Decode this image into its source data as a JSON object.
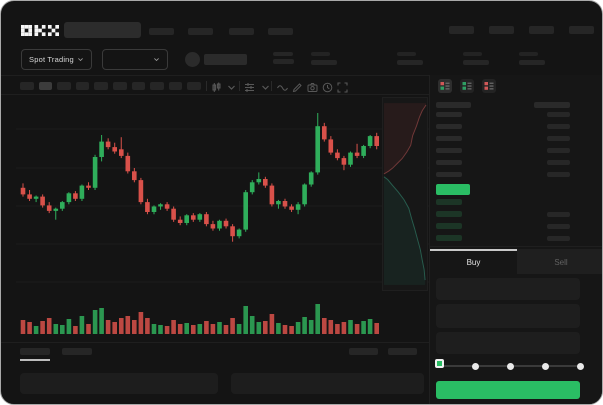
{
  "brand": {
    "name": "OKX"
  },
  "header": {
    "search_placeholder": "",
    "nav_left_placeholders": 4,
    "nav_right_placeholders": 4
  },
  "market_bar": {
    "mode_selector_label": "Spot Trading",
    "pair_selector_value": "",
    "ticker_stat_placeholders": 4
  },
  "toolbar": {
    "timeframe_placeholders": 10,
    "selected_timeframe_index": 1,
    "icons": [
      "candle-style",
      "chevron-down",
      "indicators",
      "chevron-down",
      "wave-line",
      "pencil",
      "camera",
      "clock",
      "fullscreen"
    ]
  },
  "order_book": {
    "view_icons": [
      "book-both",
      "book-bids",
      "book-asks"
    ],
    "selected_view": 0,
    "ask_row_placeholders": 6,
    "bid_row_placeholders": 4,
    "bid_rows_with_amount": [
      1,
      2,
      3
    ]
  },
  "trade_panel": {
    "tabs": [
      {
        "label": "Buy",
        "active": true
      },
      {
        "label": "Sell",
        "active": false
      }
    ],
    "field_placeholders": 3,
    "slider": {
      "stops": 5,
      "active_stop": 0
    },
    "submit_label": ""
  },
  "bottom_bar": {
    "left_tab_placeholders": 2,
    "active_left_tab": 0,
    "right_link_placeholders": 2,
    "panel_placeholders": 2
  },
  "colors": {
    "candle_green": "#2fae5b",
    "candle_red": "#d9514a",
    "accent_green": "#2abd64",
    "bid_skeleton_green": "#1c3526",
    "ask_icon_red": "#d05858",
    "bid_icon_green": "#2f9e63",
    "tab_active_text": "#e4e4e4",
    "tab_inactive_text": "#626262"
  },
  "chart_data": {
    "type": "candlestick",
    "title": "",
    "xlabel": "",
    "ylabel": "",
    "legend": false,
    "grid": true,
    "price_scale_note": "no axis labels visible; prices normalized 0-100",
    "candles_ohlc": [
      [
        56,
        58,
        52,
        53
      ],
      [
        53,
        55,
        50,
        51
      ],
      [
        51,
        52.5,
        49.5,
        52
      ],
      [
        52,
        53,
        47,
        48
      ],
      [
        48,
        49.5,
        44.5,
        45.5
      ],
      [
        45.5,
        47,
        41.5,
        46.5
      ],
      [
        46.5,
        50,
        45.5,
        49.5
      ],
      [
        49.5,
        54,
        48.5,
        53.5
      ],
      [
        53.5,
        54.5,
        50,
        51
      ],
      [
        51,
        57.5,
        50,
        57
      ],
      [
        57,
        58.5,
        55,
        56
      ],
      [
        56,
        71,
        55,
        70
      ],
      [
        70,
        80,
        68,
        77
      ],
      [
        77,
        78.5,
        73.5,
        74.5
      ],
      [
        74.5,
        76.5,
        71.5,
        72.5
      ],
      [
        73.5,
        79,
        69.5,
        70.5
      ],
      [
        70.5,
        72,
        62.5,
        63.5
      ],
      [
        63.5,
        65,
        58.5,
        59.5
      ],
      [
        59.5,
        60.5,
        48.5,
        49.5
      ],
      [
        49.5,
        51,
        44,
        45
      ],
      [
        45,
        48,
        44,
        47.5
      ],
      [
        47.5,
        49,
        46,
        48.5
      ],
      [
        48.5,
        49.5,
        45.5,
        46.5
      ],
      [
        46.5,
        47.5,
        40.5,
        41.5
      ],
      [
        41.5,
        43,
        39,
        40
      ],
      [
        40,
        44,
        39,
        43.5
      ],
      [
        43.5,
        44.5,
        40.5,
        41.5
      ],
      [
        41.5,
        44.5,
        40.5,
        44
      ],
      [
        44,
        45,
        38.5,
        39.5
      ],
      [
        39.5,
        41,
        36.5,
        37.5
      ],
      [
        37.5,
        41.5,
        36.5,
        41
      ],
      [
        41,
        42,
        37.5,
        38.5
      ],
      [
        38.5,
        39.5,
        31.5,
        34
      ],
      [
        34,
        37.5,
        33,
        37
      ],
      [
        37,
        55,
        36,
        54
      ],
      [
        54,
        59.5,
        53,
        58.5
      ],
      [
        58.5,
        63,
        57.5,
        60
      ],
      [
        60,
        61,
        56,
        57
      ],
      [
        57,
        58,
        47.5,
        48.5
      ],
      [
        48.5,
        50.5,
        46.5,
        50
      ],
      [
        50,
        51,
        46.5,
        47.5
      ],
      [
        47.5,
        48.5,
        45,
        46
      ],
      [
        46,
        49.5,
        44,
        48.5
      ],
      [
        48.5,
        58,
        47.5,
        57.5
      ],
      [
        57.5,
        63.5,
        56.5,
        63
      ],
      [
        63,
        90,
        62,
        84
      ],
      [
        84,
        85.5,
        77,
        78
      ],
      [
        78,
        79.5,
        71,
        72
      ],
      [
        72,
        73.5,
        68.5,
        69.5
      ],
      [
        69.5,
        70.5,
        64,
        66.5
      ],
      [
        66.5,
        72.5,
        65.5,
        72
      ],
      [
        72,
        76,
        69.5,
        70.5
      ],
      [
        70.5,
        75.5,
        69.5,
        75
      ],
      [
        75,
        80,
        74,
        79.5
      ],
      [
        79.5,
        81,
        73.5,
        75
      ]
    ],
    "volume": [
      14,
      12,
      8,
      13,
      16,
      10,
      9,
      15,
      8,
      18,
      10,
      24,
      26,
      14,
      12,
      16,
      18,
      14,
      22,
      16,
      10,
      9,
      8,
      14,
      10,
      11,
      9,
      10,
      13,
      10,
      12,
      9,
      16,
      10,
      28,
      18,
      12,
      13,
      20,
      11,
      9,
      8,
      12,
      17,
      14,
      30,
      16,
      14,
      10,
      12,
      14,
      10,
      13,
      15,
      11
    ],
    "depth_overlay": {
      "asks_curve": [
        [
          45,
          4
        ],
        [
          41,
          10
        ],
        [
          38,
          17
        ],
        [
          35,
          26
        ],
        [
          31,
          36
        ],
        [
          29,
          46
        ],
        [
          25,
          53
        ],
        [
          20,
          60
        ],
        [
          15,
          65
        ],
        [
          10,
          70
        ],
        [
          6,
          73
        ],
        [
          1,
          76
        ]
      ],
      "bids_curve": [
        [
          1,
          79
        ],
        [
          5,
          82
        ],
        [
          10,
          88
        ],
        [
          16,
          95
        ],
        [
          22,
          103
        ],
        [
          27,
          112
        ],
        [
          30,
          123
        ],
        [
          33,
          133
        ],
        [
          36,
          144
        ],
        [
          39,
          155
        ],
        [
          41,
          166
        ],
        [
          43,
          176
        ],
        [
          44,
          187
        ]
      ]
    }
  }
}
